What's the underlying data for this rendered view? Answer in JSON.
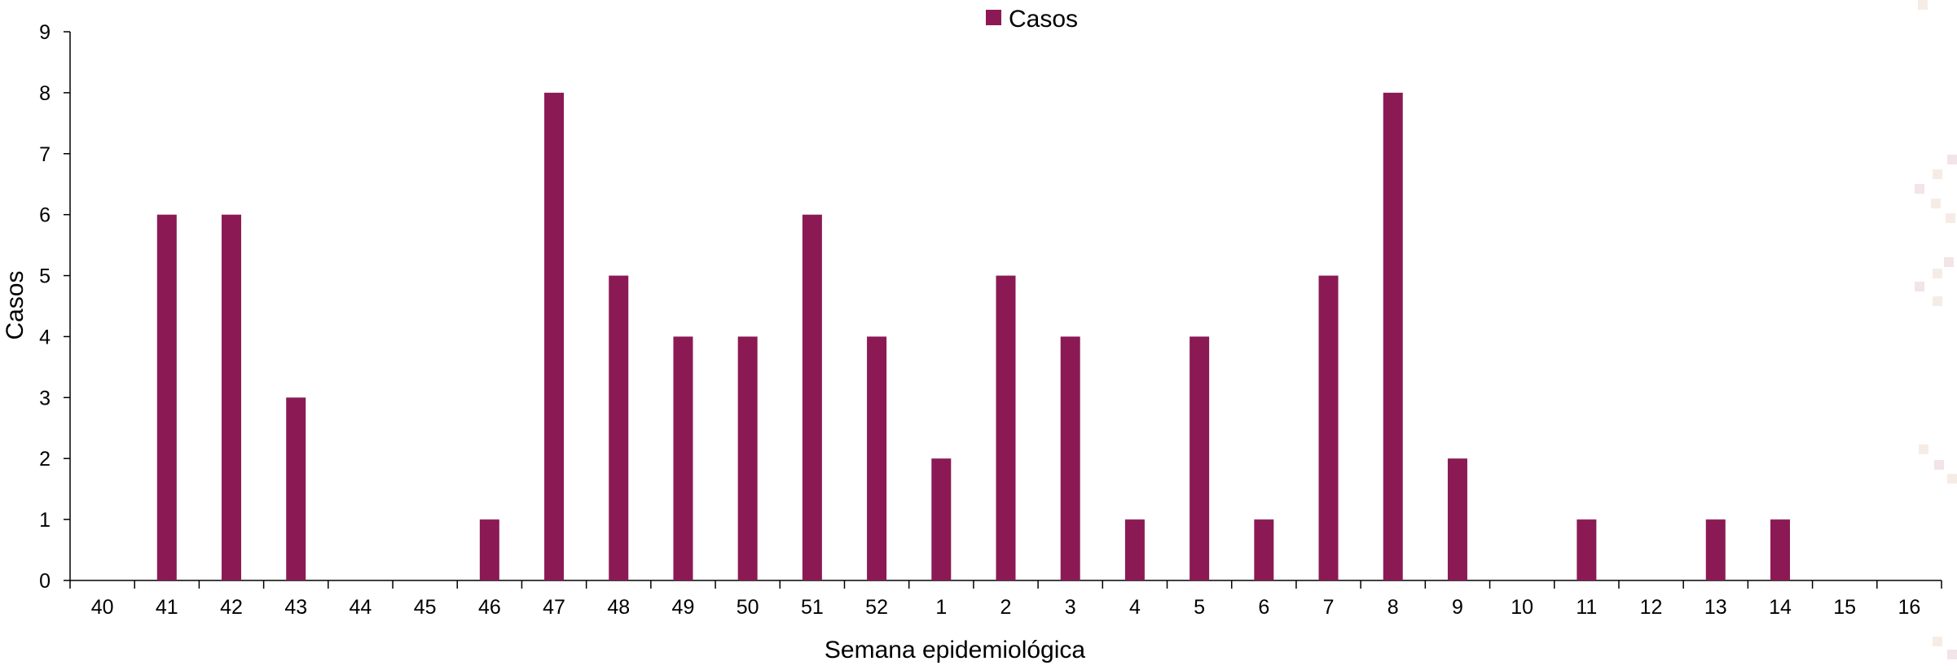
{
  "chart_data": {
    "type": "bar",
    "title": "",
    "xlabel": "Semana epidemiológica",
    "ylabel": "Casos",
    "ylim": [
      0,
      9
    ],
    "yticks": [
      0,
      1,
      2,
      3,
      4,
      5,
      6,
      7,
      8,
      9
    ],
    "grid": false,
    "legend_position": "top-center",
    "categories": [
      "40",
      "41",
      "42",
      "43",
      "44",
      "45",
      "46",
      "47",
      "48",
      "49",
      "50",
      "51",
      "52",
      "1",
      "2",
      "3",
      "4",
      "5",
      "6",
      "7",
      "8",
      "9",
      "10",
      "11",
      "12",
      "13",
      "14",
      "15",
      "16"
    ],
    "series": [
      {
        "name": "Casos",
        "color": "#8B1A54",
        "values": [
          0,
          6,
          6,
          3,
          0,
          0,
          1,
          8,
          5,
          4,
          4,
          6,
          4,
          2,
          5,
          4,
          1,
          4,
          1,
          5,
          8,
          2,
          0,
          1,
          0,
          1,
          1,
          0,
          0
        ]
      }
    ]
  }
}
